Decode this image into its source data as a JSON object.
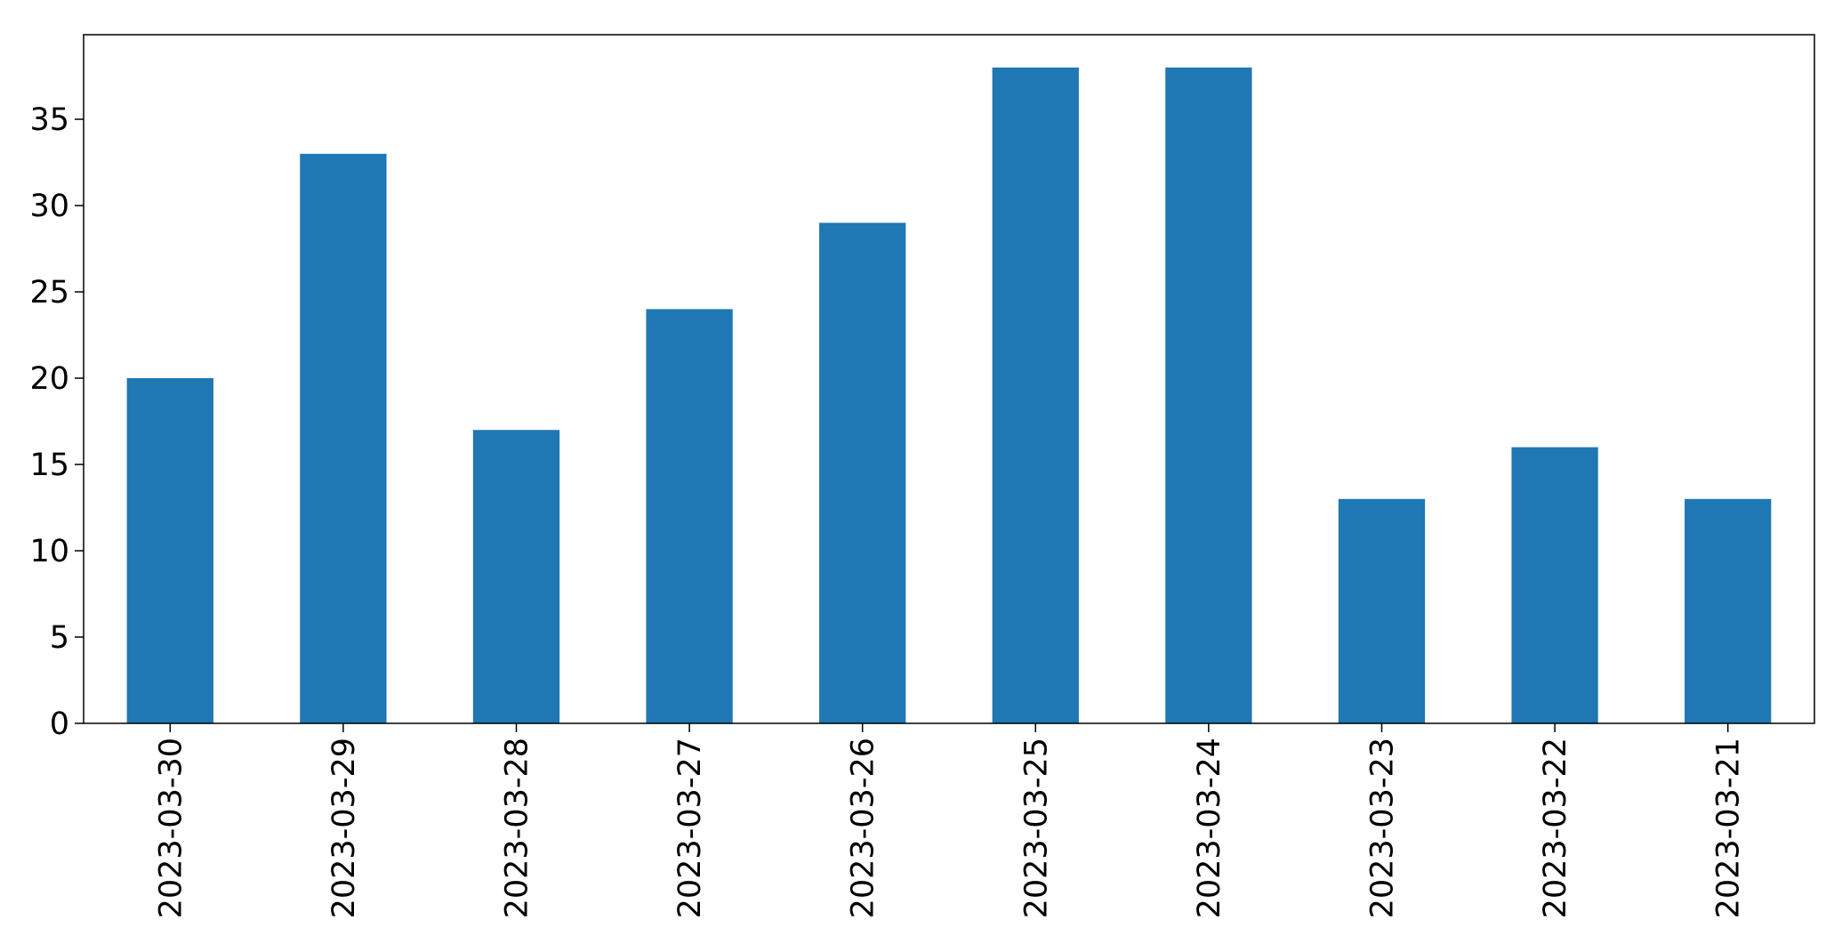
{
  "chart_data": {
    "type": "bar",
    "title": "",
    "xlabel": "",
    "ylabel": "",
    "categories": [
      "2023-03-30",
      "2023-03-29",
      "2023-03-28",
      "2023-03-27",
      "2023-03-26",
      "2023-03-25",
      "2023-03-24",
      "2023-03-23",
      "2023-03-22",
      "2023-03-21"
    ],
    "values": [
      20,
      33,
      17,
      24,
      29,
      38,
      38,
      13,
      16,
      13
    ],
    "ylim": [
      0,
      39.9
    ],
    "yticks": [
      0,
      5,
      10,
      15,
      20,
      25,
      30,
      35
    ],
    "ytick_labels": [
      "0",
      "5",
      "10",
      "15",
      "20",
      "25",
      "30",
      "35"
    ],
    "bar_color": "#1f77b4",
    "axis_color": "#000000",
    "grid": false,
    "legend": "none"
  }
}
